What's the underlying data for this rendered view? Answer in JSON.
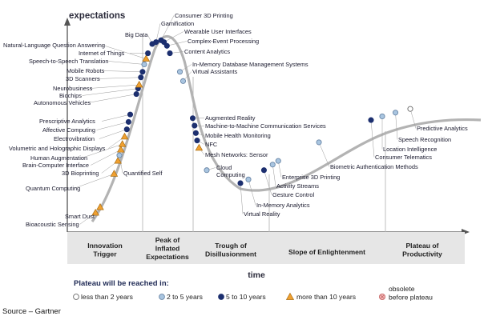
{
  "chart_data": {
    "type": "scatter",
    "title": "",
    "ylabel": "expectations",
    "xlabel": "time",
    "phases": [
      "Innovation Trigger",
      "Peak of Inflated Expectations",
      "Trough of Disillusionment",
      "Slope of Enlightenment",
      "Plateau of Productivity"
    ],
    "legend": {
      "title": "Plateau will be reached in:",
      "entries": [
        {
          "key": "lt2",
          "label": "less than 2 years"
        },
        {
          "key": "2to5",
          "label": "2 to 5 years"
        },
        {
          "key": "5to10",
          "label": "5 to 10 years"
        },
        {
          "key": "gt10",
          "label": "more than 10 years"
        },
        {
          "key": "obsolete",
          "label": "obsolete before plateau"
        }
      ]
    },
    "colors": {
      "lt2": "#ffffff",
      "2to5": "#a9c5e0",
      "5to10": "#1c2f6f",
      "gt10": "#f0a030",
      "obsolete": "#f2b8b8",
      "curve": "#b3b3b3"
    },
    "technologies": [
      {
        "name": "Bioacoustic Sensing",
        "category": "gt10",
        "x": 0.5,
        "expectation": 0.06
      },
      {
        "name": "Smart Dust",
        "category": "gt10",
        "x": 1.2,
        "expectation": 0.09
      },
      {
        "name": "Quantum Computing",
        "category": "gt10",
        "x": 3.4,
        "expectation": 0.27
      },
      {
        "name": "3D Bioprinting",
        "category": "gt10",
        "x": 4.2,
        "expectation": 0.34
      },
      {
        "name": "Quantified Self",
        "category": "2to5",
        "x": 4.5,
        "expectation": 0.37
      },
      {
        "name": "Brain-Computer Interface",
        "category": "gt10",
        "x": 4.8,
        "expectation": 0.4
      },
      {
        "name": "Human Augmentation",
        "category": "gt10",
        "x": 5.1,
        "expectation": 0.43
      },
      {
        "name": "Volumetric and Holographic Displays",
        "category": "gt10",
        "x": 5.5,
        "expectation": 0.47
      },
      {
        "name": "Electrovibration",
        "category": "5to10",
        "x": 5.9,
        "expectation": 0.51
      },
      {
        "name": "Affective Computing",
        "category": "5to10",
        "x": 6.2,
        "expectation": 0.55
      },
      {
        "name": "Prescriptive Analytics",
        "category": "5to10",
        "x": 6.5,
        "expectation": 0.59
      },
      {
        "name": "Autonomous Vehicles",
        "category": "5to10",
        "x": 7.6,
        "expectation": 0.7
      },
      {
        "name": "Biochips",
        "category": "5to10",
        "x": 7.9,
        "expectation": 0.73
      },
      {
        "name": "Neurobusiness",
        "category": "gt10",
        "x": 8.1,
        "expectation": 0.75
      },
      {
        "name": "3D Scanners",
        "category": "5to10",
        "x": 8.4,
        "expectation": 0.79
      },
      {
        "name": "Mobile Robots",
        "category": "5to10",
        "x": 8.7,
        "expectation": 0.82
      },
      {
        "name": "Speech-to-Speech Translation",
        "category": "2to5",
        "x": 9.0,
        "expectation": 0.86
      },
      {
        "name": "Natural-Language Question Answering",
        "category": "gt10",
        "x": 9.3,
        "expectation": 0.89
      },
      {
        "name": "Internet of Things",
        "category": "5to10",
        "x": 9.6,
        "expectation": 0.92
      },
      {
        "name": "Big Data",
        "category": "5to10",
        "x": 10.3,
        "expectation": 0.97
      },
      {
        "name": "Gamification",
        "category": "5to10",
        "x": 10.6,
        "expectation": 0.98
      },
      {
        "name": "Consumer 3D Printing",
        "category": "5to10",
        "x": 11.0,
        "expectation": 0.99
      },
      {
        "name": "Wearable User Interfaces",
        "category": "5to10",
        "x": 11.3,
        "expectation": 0.98
      },
      {
        "name": "Complex-Event Processing",
        "category": "5to10",
        "x": 11.6,
        "expectation": 0.96
      },
      {
        "name": "Content Analytics",
        "category": "5to10",
        "x": 11.9,
        "expectation": 0.92
      },
      {
        "name": "In-Memory Database Management Systems",
        "category": "2to5",
        "x": 12.4,
        "expectation": 0.82
      },
      {
        "name": "Virtual Assistants",
        "category": "2to5",
        "x": 12.6,
        "expectation": 0.77
      },
      {
        "name": "Augmented Reality",
        "category": "5to10",
        "x": 13.4,
        "expectation": 0.57
      },
      {
        "name": "Machine-to-Machine Communication Services",
        "category": "5to10",
        "x": 13.6,
        "expectation": 0.53
      },
      {
        "name": "Mobile Health Monitoring",
        "category": "5to10",
        "x": 13.8,
        "expectation": 0.49
      },
      {
        "name": "NFC",
        "category": "5to10",
        "x": 14.0,
        "expectation": 0.45
      },
      {
        "name": "Mesh Networks: Sensor",
        "category": "gt10",
        "x": 14.2,
        "expectation": 0.41
      },
      {
        "name": "Cloud Computing",
        "category": "2to5",
        "x": 15.0,
        "expectation": 0.29
      },
      {
        "name": "Virtual Reality",
        "category": "5to10",
        "x": 17.0,
        "expectation": 0.22
      },
      {
        "name": "In-Memory Analytics",
        "category": "2to5",
        "x": 18.2,
        "expectation": 0.24
      },
      {
        "name": "Gesture Control",
        "category": "5to10",
        "x": 19.6,
        "expectation": 0.29
      },
      {
        "name": "Activity Streams",
        "category": "2to5",
        "x": 20.3,
        "expectation": 0.32
      },
      {
        "name": "Enterprise 3D Printing",
        "category": "2to5",
        "x": 20.7,
        "expectation": 0.34
      },
      {
        "name": "Biometric Authentication Methods",
        "category": "2to5",
        "x": 23.7,
        "expectation": 0.44
      },
      {
        "name": "Consumer Telematics",
        "category": "5to10",
        "x": 28.0,
        "expectation": 0.56
      },
      {
        "name": "Location Intelligence",
        "category": "2to5",
        "x": 29.0,
        "expectation": 0.58
      },
      {
        "name": "Speech Recognition",
        "category": "2to5",
        "x": 30.3,
        "expectation": 0.6
      },
      {
        "name": "Predictive Analytics",
        "category": "lt2",
        "x": 32.5,
        "expectation": 0.62
      }
    ]
  },
  "footer": {
    "source": "Source – Gartner"
  }
}
